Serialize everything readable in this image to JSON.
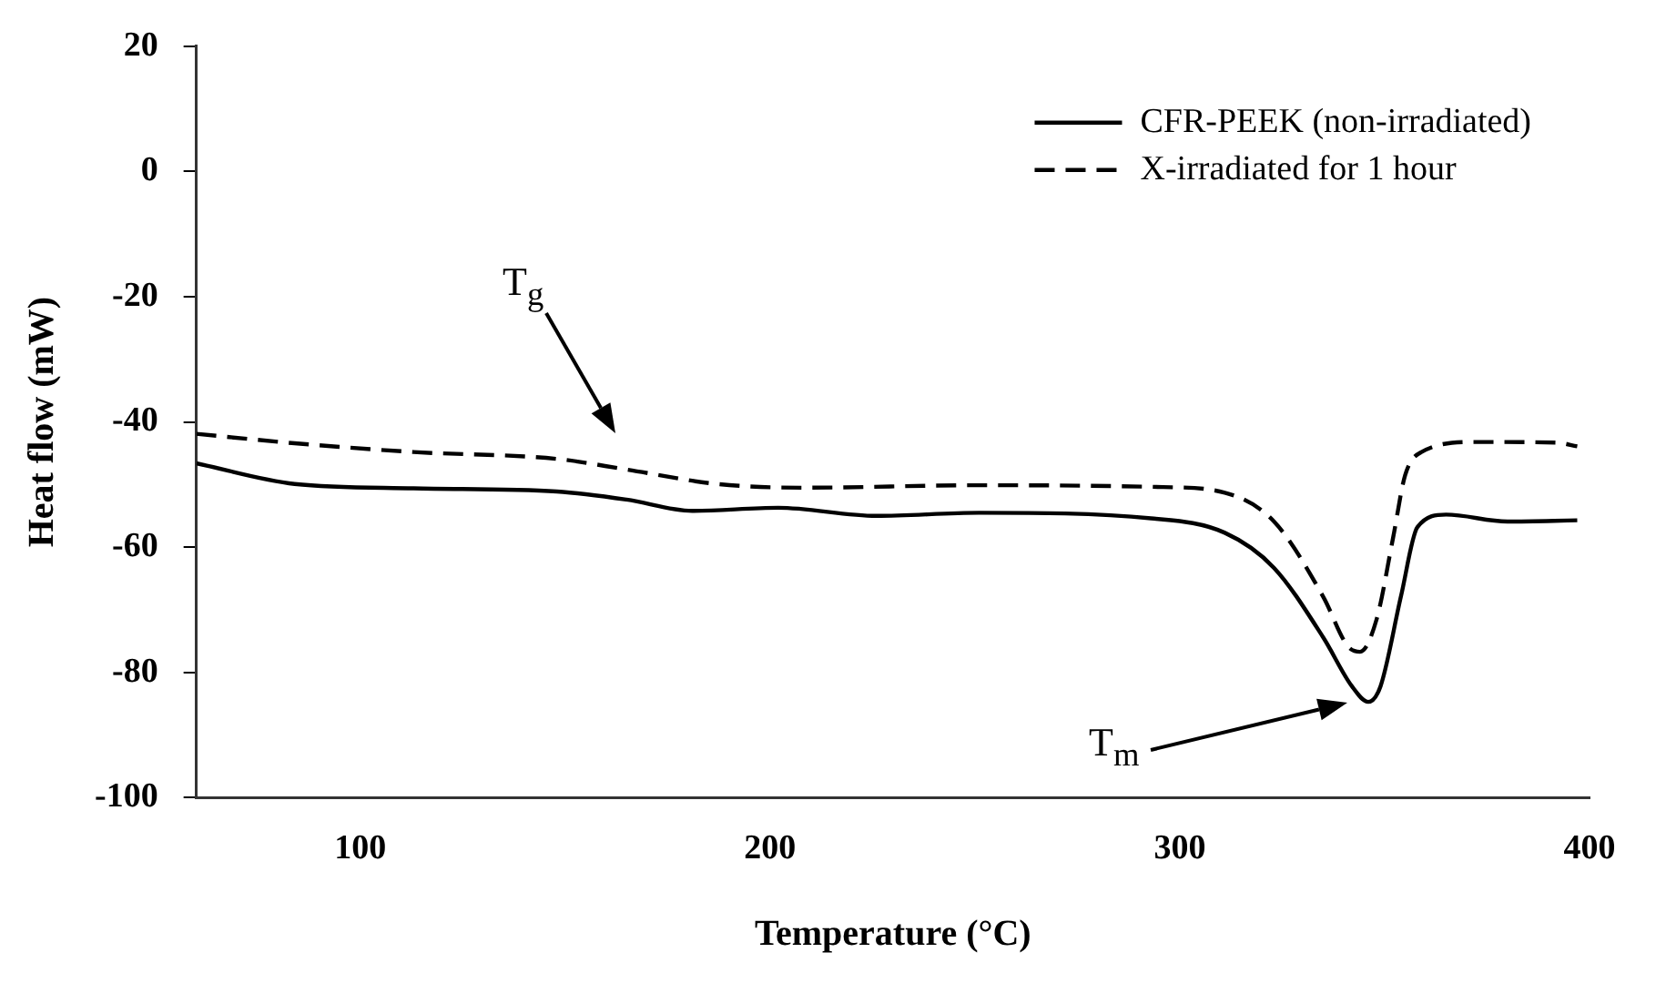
{
  "chart_data": {
    "type": "line",
    "xlabel": "Temperature (°C)",
    "ylabel": "Heat flow (mW)",
    "xlim": [
      60,
      400
    ],
    "xticks": [
      100,
      200,
      300,
      400
    ],
    "ylim": [
      -100,
      20
    ],
    "yticks": [
      -100,
      -80,
      -60,
      -40,
      -20,
      0,
      20
    ],
    "grid": false,
    "legend": "top right",
    "marker": "none",
    "series": [
      {
        "name": "CFR-PEEK (non-irradiated)",
        "color": "#000000",
        "line_style": "solid",
        "x": [
          60,
          84,
          113,
          148,
          165,
          181,
          202,
          226,
          251,
          293,
          311,
          323,
          335,
          342,
          346,
          349,
          354,
          358,
          365,
          380,
          397
        ],
        "values": [
          -46.6,
          -49.9,
          -50.6,
          -51.1,
          -52.4,
          -54.2,
          -53.7,
          -55,
          -54.5,
          -55.4,
          -57.7,
          -63.3,
          -74.4,
          -82.2,
          -84.7,
          -82.2,
          -67.8,
          -56.8,
          -54.8,
          -55.9,
          -55.7
        ]
      },
      {
        "name": "X-irradiated for 1 hour",
        "color": "#000000",
        "line_style": "dashed",
        "x": [
          60,
          84,
          113,
          148,
          165,
          187,
          208,
          251,
          296,
          311,
          323,
          335,
          341,
          344,
          348,
          352,
          355,
          359,
          372,
          392,
          397
        ],
        "values": [
          -41.9,
          -43.4,
          -44.8,
          -45.9,
          -47.6,
          -49.9,
          -50.5,
          -50.1,
          -50.4,
          -51.3,
          -55.9,
          -67.9,
          -75.8,
          -76.7,
          -71.6,
          -58.7,
          -48.5,
          -44.8,
          -43.2,
          -43.3,
          -43.9
        ]
      }
    ],
    "annotations": [
      "T$_{g}$",
      "T$_{m}$"
    ]
  }
}
